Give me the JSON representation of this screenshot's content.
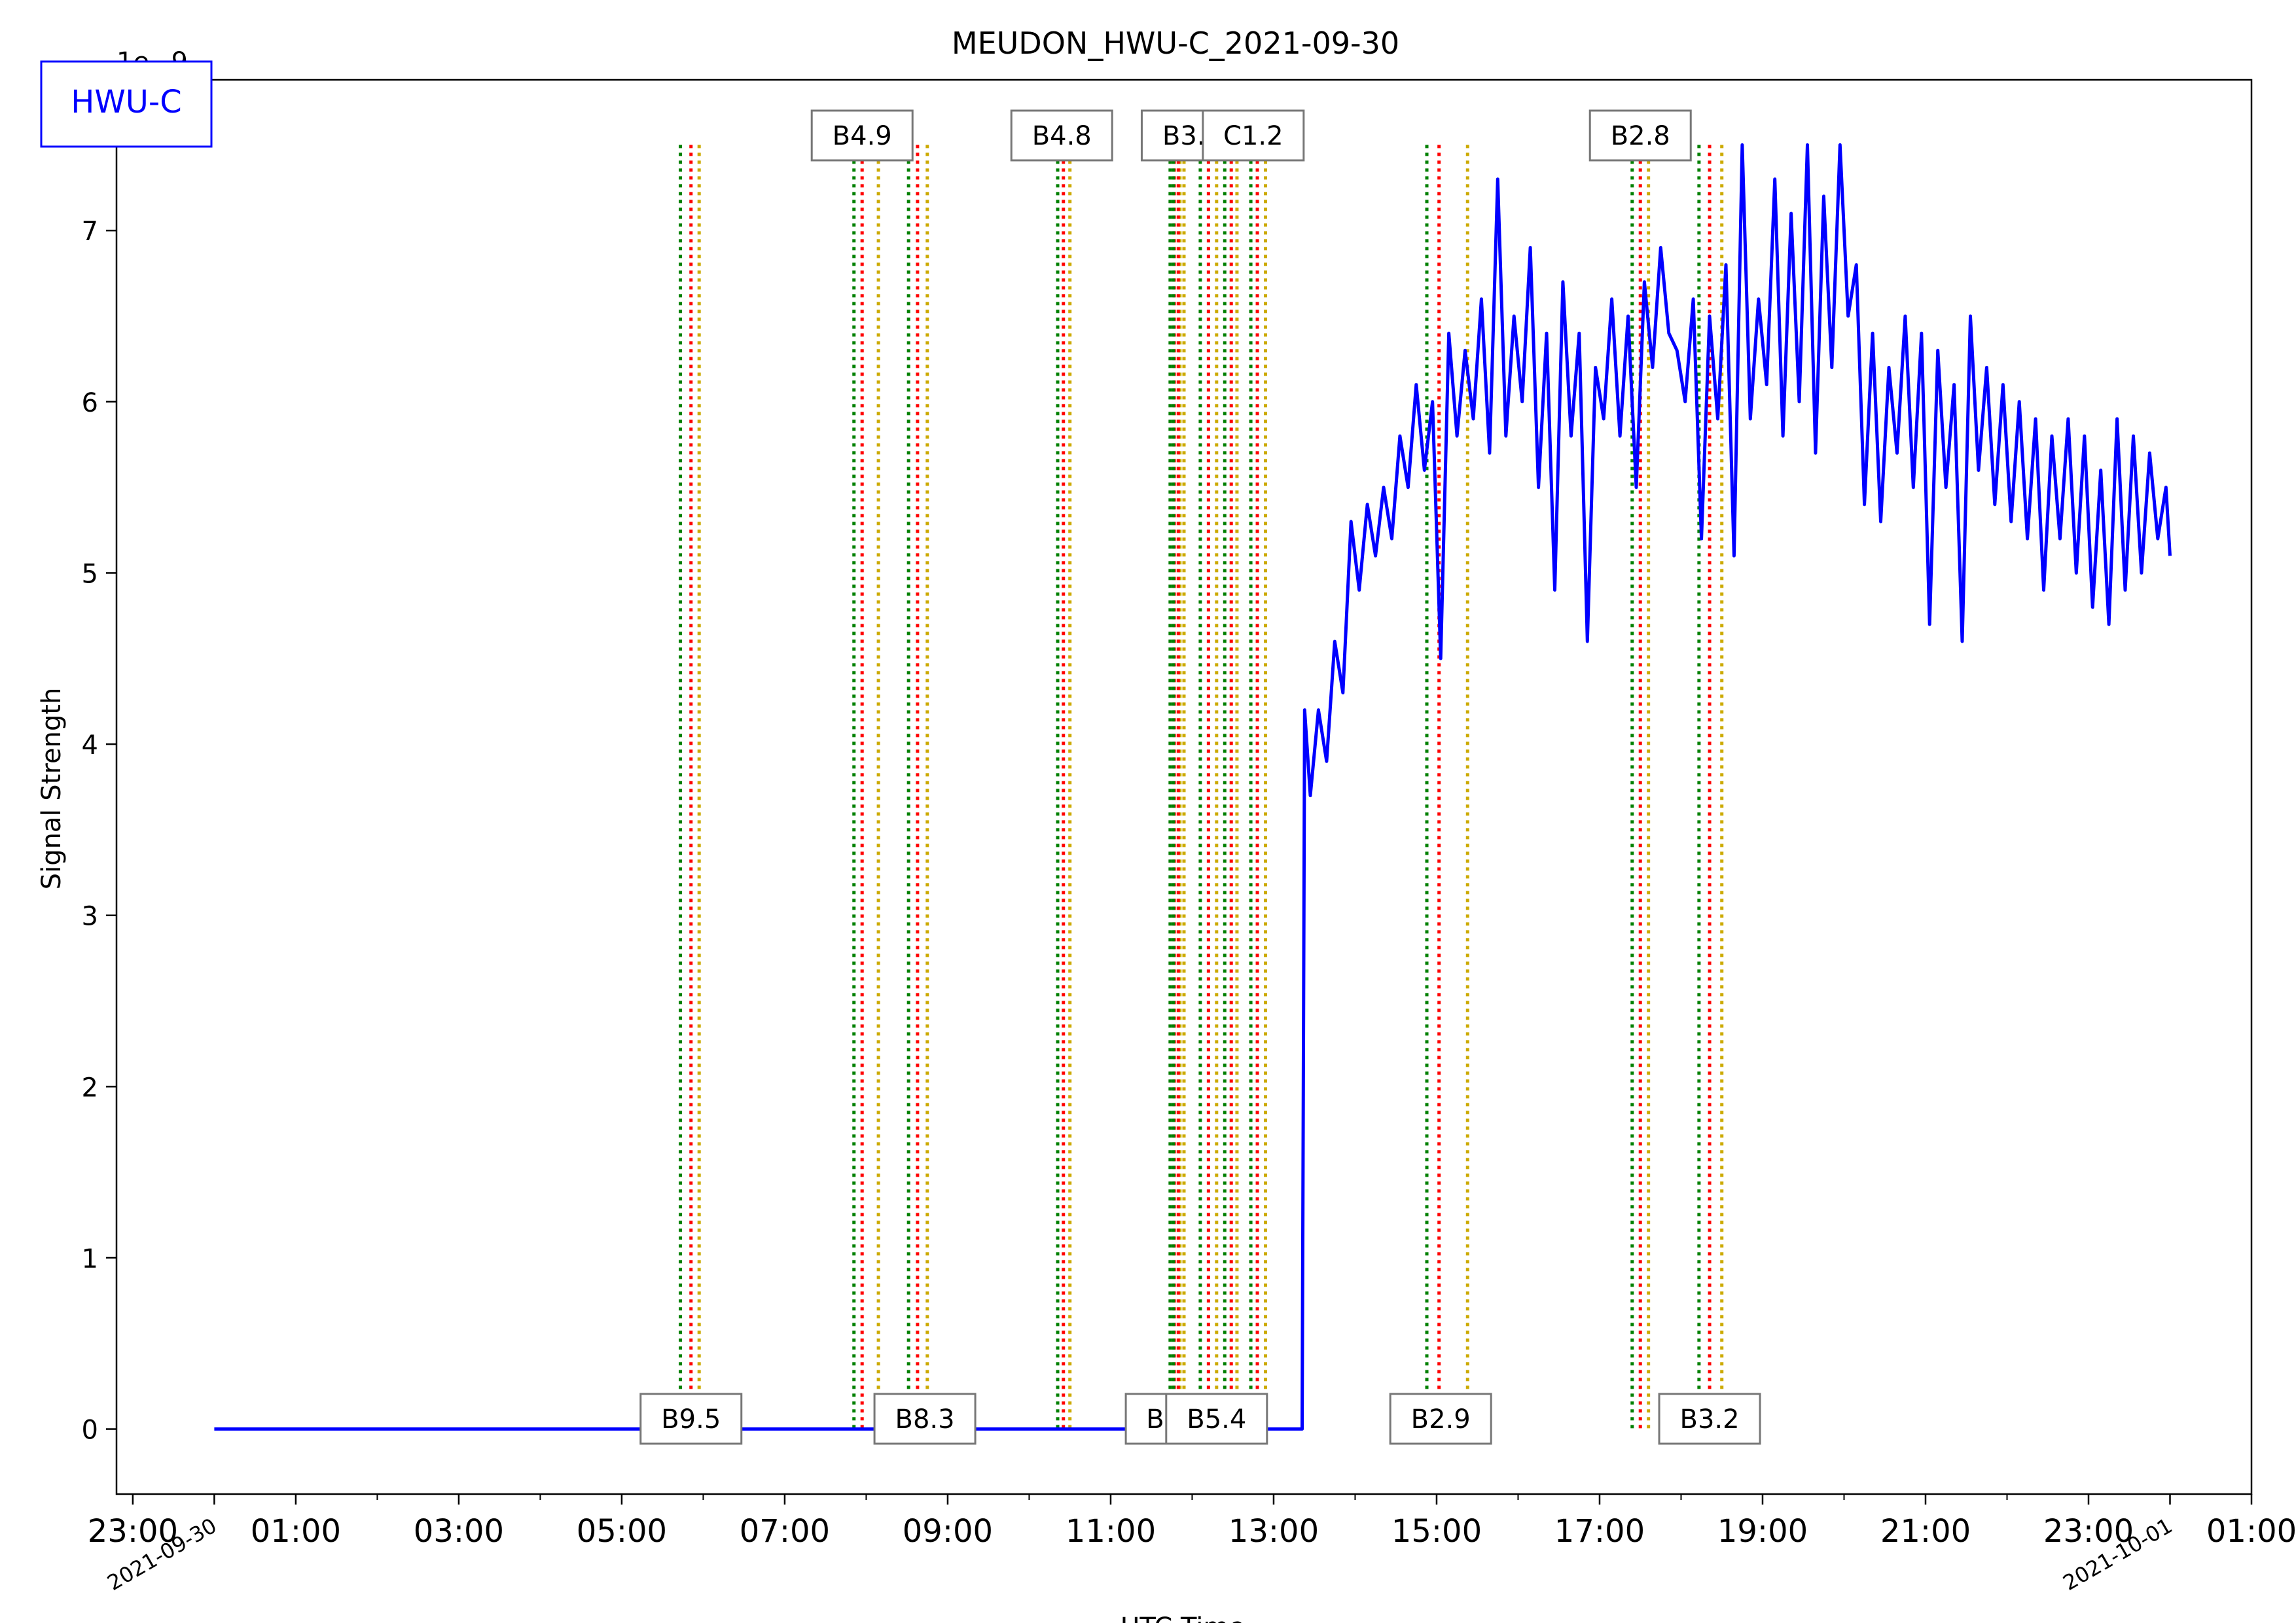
{
  "chart_data": {
    "type": "line",
    "title": "MEUDON_HWU-C_2021-09-30",
    "xlabel": "UTC Time",
    "ylabel": "Signal Strength",
    "offset_text": "1e−9",
    "legend": {
      "label": "HWU-C",
      "placement": "top-left",
      "color": "#0000ff"
    },
    "line_color": "#0000ff",
    "xlim": [
      -1.2,
      25.0
    ],
    "ylim": [
      -0.38,
      7.88
    ],
    "x_ticks": [
      {
        "h": -1,
        "label": "23:00"
      },
      {
        "h": 1,
        "label": "01:00"
      },
      {
        "h": 3,
        "label": "03:00"
      },
      {
        "h": 5,
        "label": "05:00"
      },
      {
        "h": 7,
        "label": "07:00"
      },
      {
        "h": 9,
        "label": "09:00"
      },
      {
        "h": 11,
        "label": "11:00"
      },
      {
        "h": 13,
        "label": "13:00"
      },
      {
        "h": 15,
        "label": "15:00"
      },
      {
        "h": 17,
        "label": "17:00"
      },
      {
        "h": 19,
        "label": "19:00"
      },
      {
        "h": 21,
        "label": "21:00"
      },
      {
        "h": 23,
        "label": "23:00"
      },
      {
        "h": 25,
        "label": "01:00"
      }
    ],
    "date_ticks": [
      {
        "h": 0,
        "label": "2021-09-30"
      },
      {
        "h": 24,
        "label": "2021-10-01"
      }
    ],
    "y_ticks": [
      0,
      1,
      2,
      3,
      4,
      5,
      6,
      7
    ],
    "flares": [
      {
        "label": "B9.5",
        "pos": "bottom",
        "label_h": 5.85,
        "start": 5.72,
        "peak": 5.85,
        "end": 5.95
      },
      {
        "label": "B4.9",
        "pos": "top",
        "label_h": 7.95,
        "start": 7.85,
        "peak": 7.95,
        "end": 8.15
      },
      {
        "label": "B8.3",
        "pos": "bottom",
        "label_h": 8.72,
        "start": 8.52,
        "peak": 8.63,
        "end": 8.75
      },
      {
        "label": "B4.8",
        "pos": "top",
        "label_h": 10.4,
        "start": 10.35,
        "peak": 10.42,
        "end": 10.5
      },
      {
        "label": "B6.",
        "pos": "bottom",
        "label_h": 11.7,
        "start": 11.73,
        "peak": 11.78,
        "end": 11.85
      },
      {
        "label": "B3.0",
        "pos": "top",
        "label_h": 12.0,
        "start": 11.77,
        "peak": 11.83,
        "end": 11.9
      },
      {
        "label": "B5.4",
        "pos": "bottom",
        "label_h": 12.3,
        "start": 12.1,
        "peak": 12.2,
        "end": 12.3
      },
      {
        "label": "C1.2",
        "pos": "top",
        "label_h": 12.75,
        "start": 12.4,
        "peak": 12.48,
        "end": 12.55
      },
      {
        "label": "",
        "pos": "none",
        "label_h": 0,
        "start": 12.72,
        "peak": 12.8,
        "end": 12.9
      },
      {
        "label": "B2.9",
        "pos": "bottom",
        "label_h": 15.05,
        "start": 14.88,
        "peak": 15.03,
        "end": 15.38
      },
      {
        "label": "B2.8",
        "pos": "top",
        "label_h": 17.5,
        "start": 17.4,
        "peak": 17.5,
        "end": 17.6
      },
      {
        "label": "B3.2",
        "pos": "bottom",
        "label_h": 18.35,
        "start": 18.22,
        "peak": 18.35,
        "end": 18.5
      }
    ],
    "flare_colors": {
      "start": "#008000",
      "peak": "#ff0000",
      "end": "#ccaa00"
    },
    "series": [
      {
        "x": [
          0,
          13.35,
          13.38,
          13.45,
          13.55,
          13.65,
          13.75,
          13.85,
          13.95,
          14.05,
          14.15,
          14.25,
          14.35,
          14.45,
          14.55,
          14.65,
          14.75,
          14.85,
          14.95,
          15.05,
          15.15,
          15.25,
          15.35,
          15.45,
          15.55,
          15.65,
          15.75,
          15.85,
          15.95,
          16.05,
          16.15,
          16.25,
          16.35,
          16.45,
          16.55,
          16.65,
          16.75,
          16.85,
          16.95,
          17.05,
          17.15,
          17.25,
          17.35,
          17.45,
          17.55,
          17.65,
          17.75,
          17.85,
          17.95,
          18.05,
          18.15,
          18.25,
          18.35,
          18.45,
          18.55,
          18.65,
          18.75,
          18.85,
          18.95,
          19.05,
          19.15,
          19.25,
          19.35,
          19.45,
          19.55,
          19.65,
          19.75,
          19.85,
          19.95,
          20.05,
          20.15,
          20.25,
          20.35,
          20.45,
          20.55,
          20.65,
          20.75,
          20.85,
          20.95,
          21.05,
          21.15,
          21.25,
          21.35,
          21.45,
          21.55,
          21.65,
          21.75,
          21.85,
          21.95,
          22.05,
          22.15,
          22.25,
          22.35,
          22.45,
          22.55,
          22.65,
          22.75,
          22.85,
          22.95,
          23.05,
          23.15,
          23.25,
          23.35,
          23.45,
          23.55,
          23.65,
          23.75,
          23.85,
          23.95,
          24.0
        ],
        "y": [
          0,
          0,
          4.2,
          3.7,
          4.2,
          3.9,
          4.6,
          4.3,
          5.3,
          4.9,
          5.4,
          5.1,
          5.5,
          5.2,
          5.8,
          5.5,
          6.1,
          5.6,
          6.0,
          4.5,
          6.4,
          5.8,
          6.3,
          5.9,
          6.6,
          5.7,
          7.3,
          5.8,
          6.5,
          6.0,
          6.9,
          5.5,
          6.4,
          4.9,
          6.7,
          5.8,
          6.4,
          4.6,
          6.2,
          5.9,
          6.6,
          5.8,
          6.5,
          5.5,
          6.7,
          6.2,
          6.9,
          6.4,
          6.3,
          6.0,
          6.6,
          5.2,
          6.5,
          5.9,
          6.8,
          5.1,
          7.5,
          5.9,
          6.6,
          6.1,
          7.3,
          5.8,
          7.1,
          6.0,
          7.5,
          5.7,
          7.2,
          6.2,
          7.5,
          6.5,
          6.8,
          5.4,
          6.4,
          5.3,
          6.2,
          5.7,
          6.5,
          5.5,
          6.4,
          4.7,
          6.3,
          5.5,
          6.1,
          4.6,
          6.5,
          5.6,
          6.2,
          5.4,
          6.1,
          5.3,
          6.0,
          5.2,
          5.9,
          4.9,
          5.8,
          5.2,
          5.9,
          5.0,
          5.8,
          4.8,
          5.6,
          4.7,
          5.9,
          4.9,
          5.8,
          5.0,
          5.7,
          5.2,
          5.5,
          5.1
        ]
      }
    ]
  }
}
